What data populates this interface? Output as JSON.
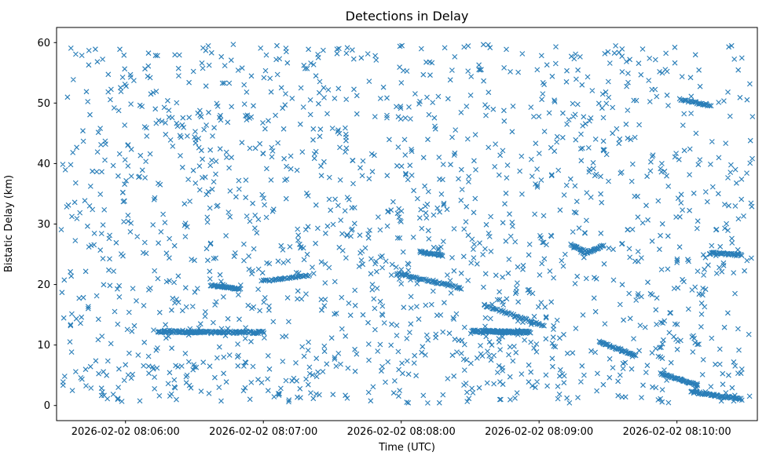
{
  "chart_data": {
    "type": "scatter",
    "title": "Detections in Delay",
    "xlabel": "Time (UTC)",
    "ylabel": "Bistatic Delay (km)",
    "marker": "x",
    "marker_color": "#1f77b4",
    "background": "#ffffff",
    "axes_frame_color": "#000000",
    "x_range_seconds": [
      0,
      305
    ],
    "x_epoch_note": "seconds measured from 2026-02-02 08:05:30 UTC (left axis edge)",
    "ylim": [
      -2.5,
      62.5
    ],
    "y_ticks": [
      0,
      10,
      20,
      30,
      40,
      50,
      60
    ],
    "x_ticks": [
      {
        "t": 30,
        "label": "2026-02-02 08:06:00"
      },
      {
        "t": 90,
        "label": "2026-02-02 08:07:00"
      },
      {
        "t": 150,
        "label": "2026-02-02 08:08:00"
      },
      {
        "t": 210,
        "label": "2026-02-02 08:09:00"
      },
      {
        "t": 270,
        "label": "2026-02-02 08:10:00"
      }
    ],
    "noise": {
      "seed": 1337,
      "count": 1650,
      "t_range": [
        2,
        303
      ],
      "y_range": [
        0.4,
        59.7
      ]
    },
    "tracks": [
      {
        "t": [
          44,
          90
        ],
        "y": [
          12.2,
          12.1
        ],
        "count": 130,
        "y_jitter": 0.18
      },
      {
        "t": [
          67,
          80
        ],
        "y": [
          19.9,
          19.2
        ],
        "count": 40,
        "y_jitter": 0.12
      },
      {
        "t": [
          90,
          110
        ],
        "y": [
          20.6,
          21.5
        ],
        "count": 36,
        "y_jitter": 0.12
      },
      {
        "t": [
          158,
          168
        ],
        "y": [
          25.4,
          24.8
        ],
        "count": 32,
        "y_jitter": 0.15
      },
      {
        "t": [
          148,
          176
        ],
        "y": [
          21.9,
          19.4
        ],
        "count": 55,
        "y_jitter": 0.15
      },
      {
        "t": [
          181,
          206
        ],
        "y": [
          12.3,
          12.1
        ],
        "count": 120,
        "y_jitter": 0.2
      },
      {
        "t": [
          186,
          212
        ],
        "y": [
          16.6,
          13.2
        ],
        "count": 48,
        "y_jitter": 0.15
      },
      {
        "t": [
          224,
          231
        ],
        "y": [
          26.6,
          25.3
        ],
        "count": 22,
        "y_jitter": 0.12
      },
      {
        "t": [
          231,
          238
        ],
        "y": [
          25.3,
          26.4
        ],
        "count": 22,
        "y_jitter": 0.12
      },
      {
        "t": [
          236,
          252
        ],
        "y": [
          10.6,
          8.2
        ],
        "count": 42,
        "y_jitter": 0.15
      },
      {
        "t": [
          263,
          279
        ],
        "y": [
          5.3,
          3.4
        ],
        "count": 42,
        "y_jitter": 0.15
      },
      {
        "t": [
          276,
          298
        ],
        "y": [
          2.3,
          1.0
        ],
        "count": 60,
        "y_jitter": 0.18
      },
      {
        "t": [
          284,
          298
        ],
        "y": [
          25.2,
          24.9
        ],
        "count": 40,
        "y_jitter": 0.2
      },
      {
        "t": [
          271,
          284
        ],
        "y": [
          50.6,
          49.6
        ],
        "count": 26,
        "y_jitter": 0.15
      }
    ]
  }
}
